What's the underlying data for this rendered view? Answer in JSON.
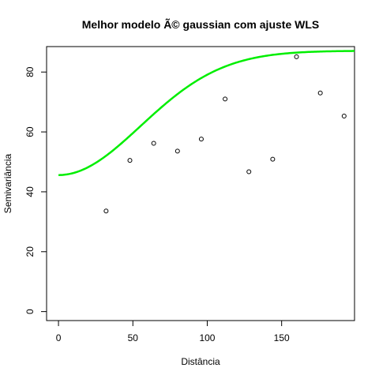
{
  "colors": {
    "curve": "#00ee00",
    "points": "#000000",
    "background": "#ffffff"
  },
  "chart_data": {
    "type": "scatter",
    "title": "Melhor modelo Ã© gaussian com ajuste  WLS",
    "xlabel": "Distância",
    "ylabel": "Semivariância",
    "xlim": [
      -8,
      199
    ],
    "ylim": [
      -3,
      88.5
    ],
    "xticks": [
      0,
      50,
      100,
      150
    ],
    "yticks": [
      0,
      20,
      40,
      60,
      80
    ],
    "grid": false,
    "legend": "none",
    "points": [
      {
        "x": 32,
        "y": 33.6
      },
      {
        "x": 48,
        "y": 50.5
      },
      {
        "x": 64,
        "y": 56.2
      },
      {
        "x": 80,
        "y": 53.6
      },
      {
        "x": 96,
        "y": 57.6
      },
      {
        "x": 112,
        "y": 71.0
      },
      {
        "x": 128,
        "y": 46.7
      },
      {
        "x": 144,
        "y": 50.9
      },
      {
        "x": 160,
        "y": 85.1
      },
      {
        "x": 176,
        "y": 73.0
      },
      {
        "x": 192,
        "y": 65.3
      }
    ],
    "fitted_curve": {
      "model": "gaussian",
      "nugget": 45.6,
      "psill": 41.5,
      "range": 135,
      "x_from": 0,
      "x_to": 199
    }
  }
}
